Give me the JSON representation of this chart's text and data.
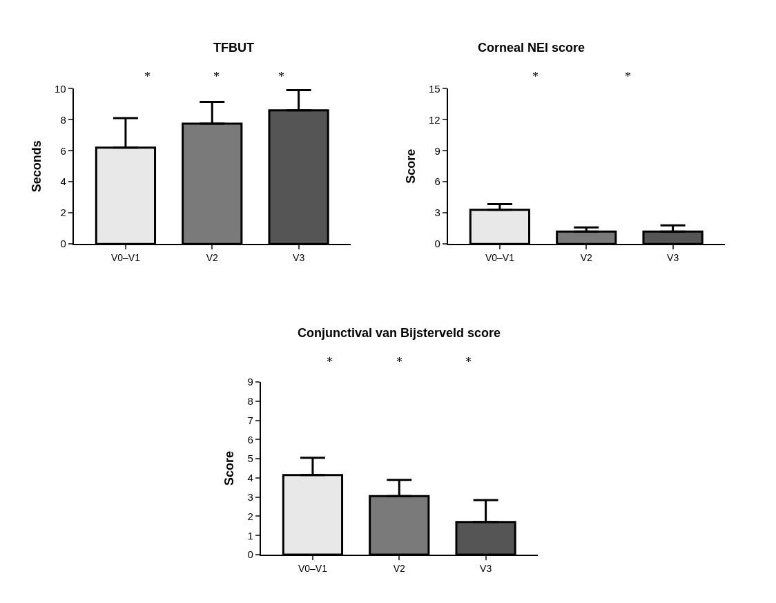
{
  "chart_data": [
    {
      "type": "bar",
      "title": "TFBUT",
      "ylabel": "Seconds",
      "categories": [
        "V0–V1",
        "V2",
        "V3"
      ],
      "values": [
        6.2,
        7.75,
        8.6
      ],
      "colors": [
        "#e8e8e8",
        "#7a7a7a",
        "#555555"
      ],
      "errors": [
        [
          6.2,
          8.1
        ],
        [
          7.75,
          9.15
        ],
        [
          8.6,
          9.9
        ]
      ],
      "ylim": [
        0,
        10
      ],
      "yticks": [
        0,
        2,
        4,
        6,
        8,
        10
      ],
      "annotations": [
        "*",
        "*",
        "*"
      ]
    },
    {
      "type": "bar",
      "title": "Corneal NEI score",
      "ylabel": "Score",
      "categories": [
        "V0–V1",
        "V2",
        "V3"
      ],
      "values": [
        3.3,
        1.2,
        1.2
      ],
      "colors": [
        "#e8e8e8",
        "#7a7a7a",
        "#555555"
      ],
      "errors": [
        [
          3.3,
          3.85
        ],
        [
          1.2,
          1.6
        ],
        [
          1.2,
          1.8
        ]
      ],
      "ylim": [
        0,
        15
      ],
      "yticks": [
        0,
        3,
        6,
        9,
        12,
        15
      ],
      "annotations": [
        "*",
        "*"
      ]
    },
    {
      "type": "bar",
      "title": "Conjunctival van Bijsterveld score",
      "ylabel": "Score",
      "categories": [
        "V0–V1",
        "V2",
        "V3"
      ],
      "values": [
        4.15,
        3.05,
        1.7
      ],
      "colors": [
        "#e8e8e8",
        "#7a7a7a",
        "#555555"
      ],
      "errors": [
        [
          4.15,
          5.05
        ],
        [
          3.05,
          3.9
        ],
        [
          1.7,
          2.85
        ]
      ],
      "ylim": [
        0,
        9
      ],
      "yticks": [
        0,
        1,
        2,
        3,
        4,
        5,
        6,
        7,
        8,
        9
      ],
      "annotations": [
        "*",
        "*",
        "*"
      ]
    }
  ]
}
